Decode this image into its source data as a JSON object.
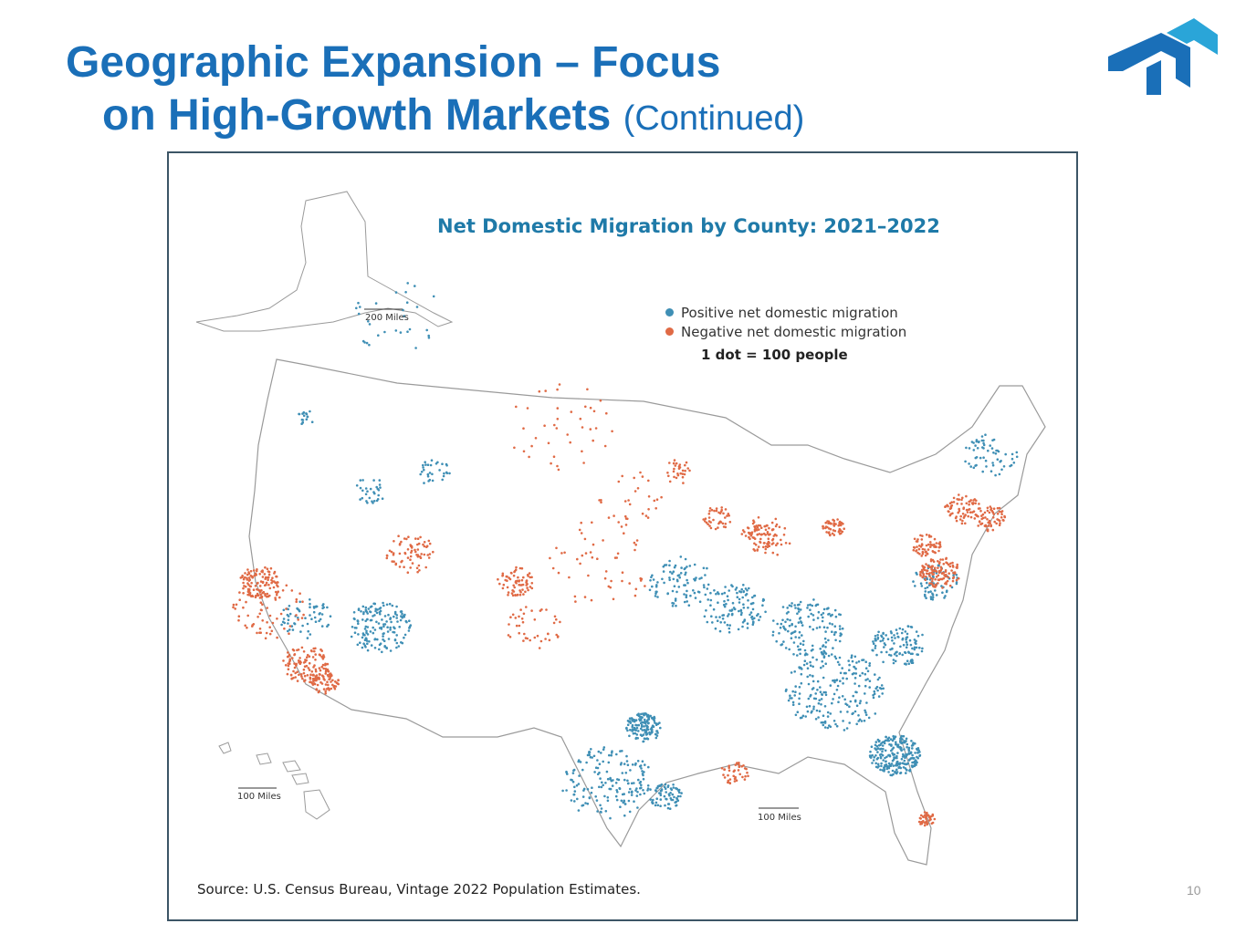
{
  "slide": {
    "title_line1": "Geographic Expansion – Focus",
    "title_line2": "on High-Growth Markets",
    "title_suffix": "(Continued)",
    "page_number": "10",
    "brand_color": "#1a6fb8",
    "logo_name": "company-logo"
  },
  "map": {
    "title": "Net Domestic Migration by County: 2021–2022",
    "legend": {
      "positive": {
        "label": "Positive net domestic migration",
        "color": "#3f8fb5"
      },
      "negative": {
        "label": "Negative net domestic migration",
        "color": "#e06a45"
      },
      "scale_note": "1 dot = 100 people"
    },
    "scale_bars": {
      "alaska": "200 Miles",
      "hawaii": "100 Miles",
      "conus": "100 Miles"
    },
    "source": "Source: U.S. Census Bureau, Vintage 2022 Population Estimates."
  }
}
